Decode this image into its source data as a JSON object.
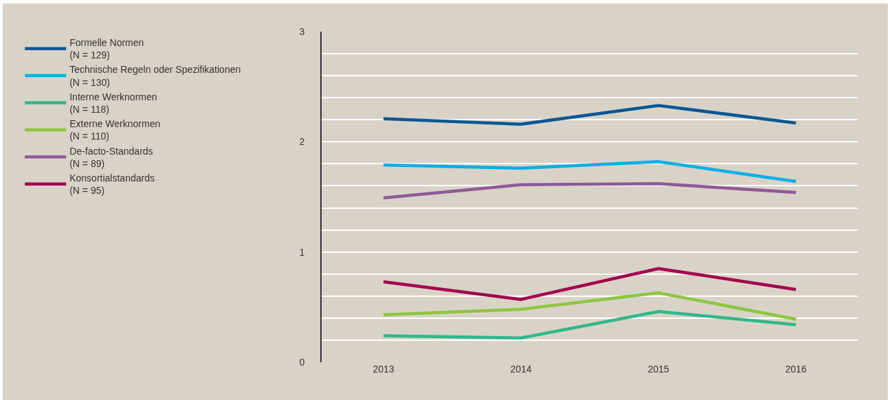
{
  "chart_data": {
    "type": "line",
    "categories": [
      "2013",
      "2014",
      "2015",
      "2016"
    ],
    "series": [
      {
        "name": "Formelle Normen\n(N = 129)",
        "color": "#0a5796",
        "values": [
          2.21,
          2.16,
          2.33,
          2.17
        ]
      },
      {
        "name": "Technische Regeln oder Spezifikationen\n(N = 130)",
        "color": "#00aee8",
        "values": [
          1.79,
          1.76,
          1.82,
          1.64
        ]
      },
      {
        "name": "Interne Werknormen\n(N = 118)",
        "color": "#2fb88a",
        "values": [
          0.24,
          0.22,
          0.46,
          0.34
        ]
      },
      {
        "name": "Externe Werknormen\n(N = 110)",
        "color": "#8dc641",
        "values": [
          0.43,
          0.48,
          0.63,
          0.39
        ]
      },
      {
        "name": "De-facto-Standards\n(N = 89)",
        "color": "#8e5a98",
        "values": [
          1.49,
          1.61,
          1.62,
          1.54
        ]
      },
      {
        "name": "Konsortialstandards\n(N = 95)",
        "color": "#a3004f",
        "values": [
          0.73,
          0.57,
          0.85,
          0.66
        ]
      }
    ],
    "ylim": [
      0,
      3
    ],
    "yticks": [
      0,
      {
        "value": 0.2,
        "label": null
      },
      {
        "value": 0.4,
        "label": null
      },
      {
        "value": 0.6,
        "label": null
      },
      {
        "value": 0.8,
        "label": null
      },
      1,
      {
        "value": 1.2,
        "label": null
      },
      {
        "value": 1.4,
        "label": null
      },
      {
        "value": 1.6,
        "label": null
      },
      {
        "value": 1.8,
        "label": null
      },
      2,
      {
        "value": 2.2,
        "label": null
      },
      {
        "value": 2.4,
        "label": null
      },
      {
        "value": 2.6,
        "label": null
      },
      {
        "value": 2.8,
        "label": null
      },
      3
    ],
    "grid": "y",
    "legend": "left",
    "marker": "none",
    "line_style": "solid"
  }
}
